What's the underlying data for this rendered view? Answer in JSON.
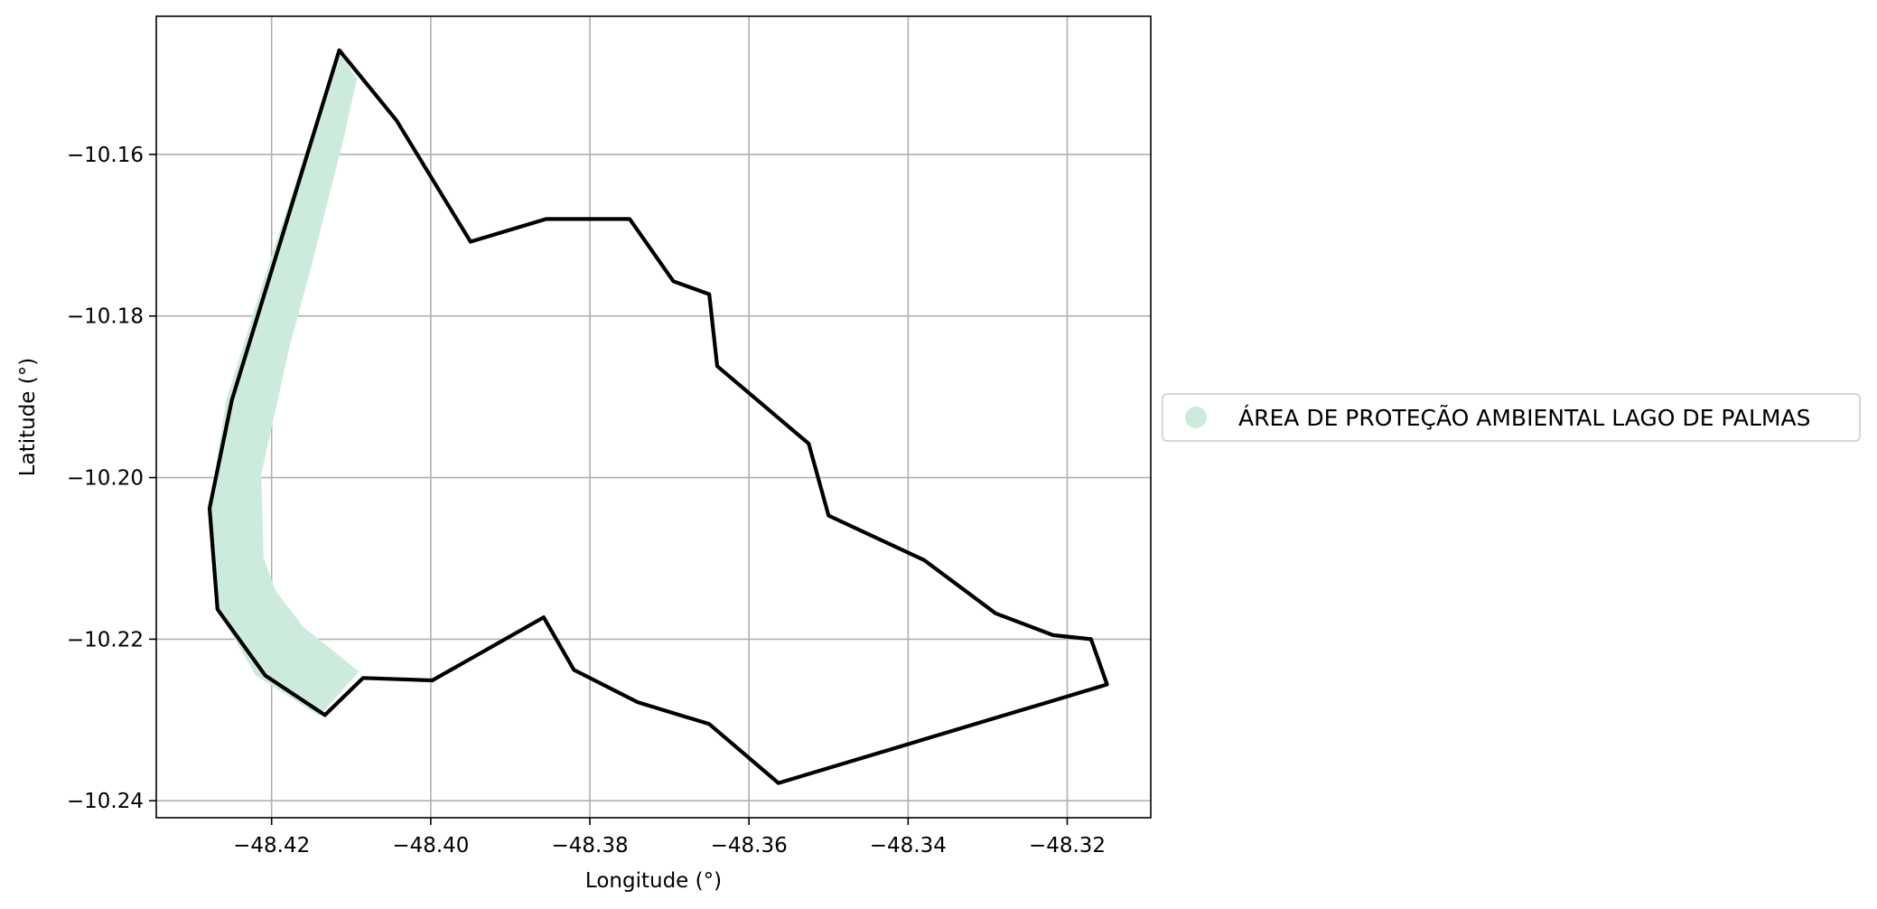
{
  "chart_data": {
    "type": "map",
    "xlabel": "Longitude (°)",
    "ylabel": "Latitude (°)",
    "xlim": [
      -48.4345,
      -48.3095
    ],
    "ylim": [
      -10.2421,
      -10.1429
    ],
    "xticks": [
      -48.42,
      -48.4,
      -48.38,
      -48.36,
      -48.34,
      -48.32
    ],
    "yticks": [
      -10.16,
      -10.18,
      -10.2,
      -10.22,
      -10.24
    ],
    "xtick_labels": [
      "−48.42",
      "−48.40",
      "−48.38",
      "−48.36",
      "−48.34",
      "−48.32"
    ],
    "ytick_labels": [
      "−10.16",
      "−10.18",
      "−10.20",
      "−10.22",
      "−10.24"
    ],
    "grid": true,
    "legend_position": "right",
    "series": [
      {
        "name": "ÁREA DE PROTEÇÃO AMBIENTAL LAGO DE PALMAS",
        "color": "#cdebdd",
        "polygon": [
          [
            -48.4115,
            -10.1471
          ],
          [
            -48.4093,
            -10.1507
          ],
          [
            -48.4109,
            -10.1578
          ],
          [
            -48.415,
            -10.1738
          ],
          [
            -48.4178,
            -10.184
          ],
          [
            -48.4213,
            -10.1995
          ],
          [
            -48.421,
            -10.21
          ],
          [
            -48.4195,
            -10.214
          ],
          [
            -48.416,
            -10.2185
          ],
          [
            -48.409,
            -10.224
          ],
          [
            -48.414,
            -10.2295
          ],
          [
            -48.422,
            -10.2245
          ],
          [
            -48.4268,
            -10.2163
          ],
          [
            -48.4278,
            -10.2038
          ],
          [
            -48.4257,
            -10.1904
          ],
          [
            -48.4205,
            -10.174
          ]
        ]
      }
    ],
    "boundary": {
      "color": "#000000",
      "polygon": [
        [
          -48.4115,
          -10.1471
        ],
        [
          -48.4043,
          -10.1558
        ],
        [
          -48.395,
          -10.1708
        ],
        [
          -48.3855,
          -10.168
        ],
        [
          -48.375,
          -10.168
        ],
        [
          -48.3695,
          -10.1757
        ],
        [
          -48.365,
          -10.1773
        ],
        [
          -48.364,
          -10.1862
        ],
        [
          -48.3525,
          -10.1958
        ],
        [
          -48.35,
          -10.2047
        ],
        [
          -48.338,
          -10.2102
        ],
        [
          -48.329,
          -10.2168
        ],
        [
          -48.3218,
          -10.2195
        ],
        [
          -48.317,
          -10.22
        ],
        [
          -48.315,
          -10.2256
        ],
        [
          -48.3563,
          -10.2378
        ],
        [
          -48.365,
          -10.2305
        ],
        [
          -48.374,
          -10.2278
        ],
        [
          -48.382,
          -10.2238
        ],
        [
          -48.3858,
          -10.2173
        ],
        [
          -48.3998,
          -10.2251
        ],
        [
          -48.4085,
          -10.2248
        ],
        [
          -48.4133,
          -10.2294
        ],
        [
          -48.4208,
          -10.2245
        ],
        [
          -48.4268,
          -10.2163
        ],
        [
          -48.4278,
          -10.2038
        ],
        [
          -48.425,
          -10.1904
        ]
      ]
    }
  }
}
